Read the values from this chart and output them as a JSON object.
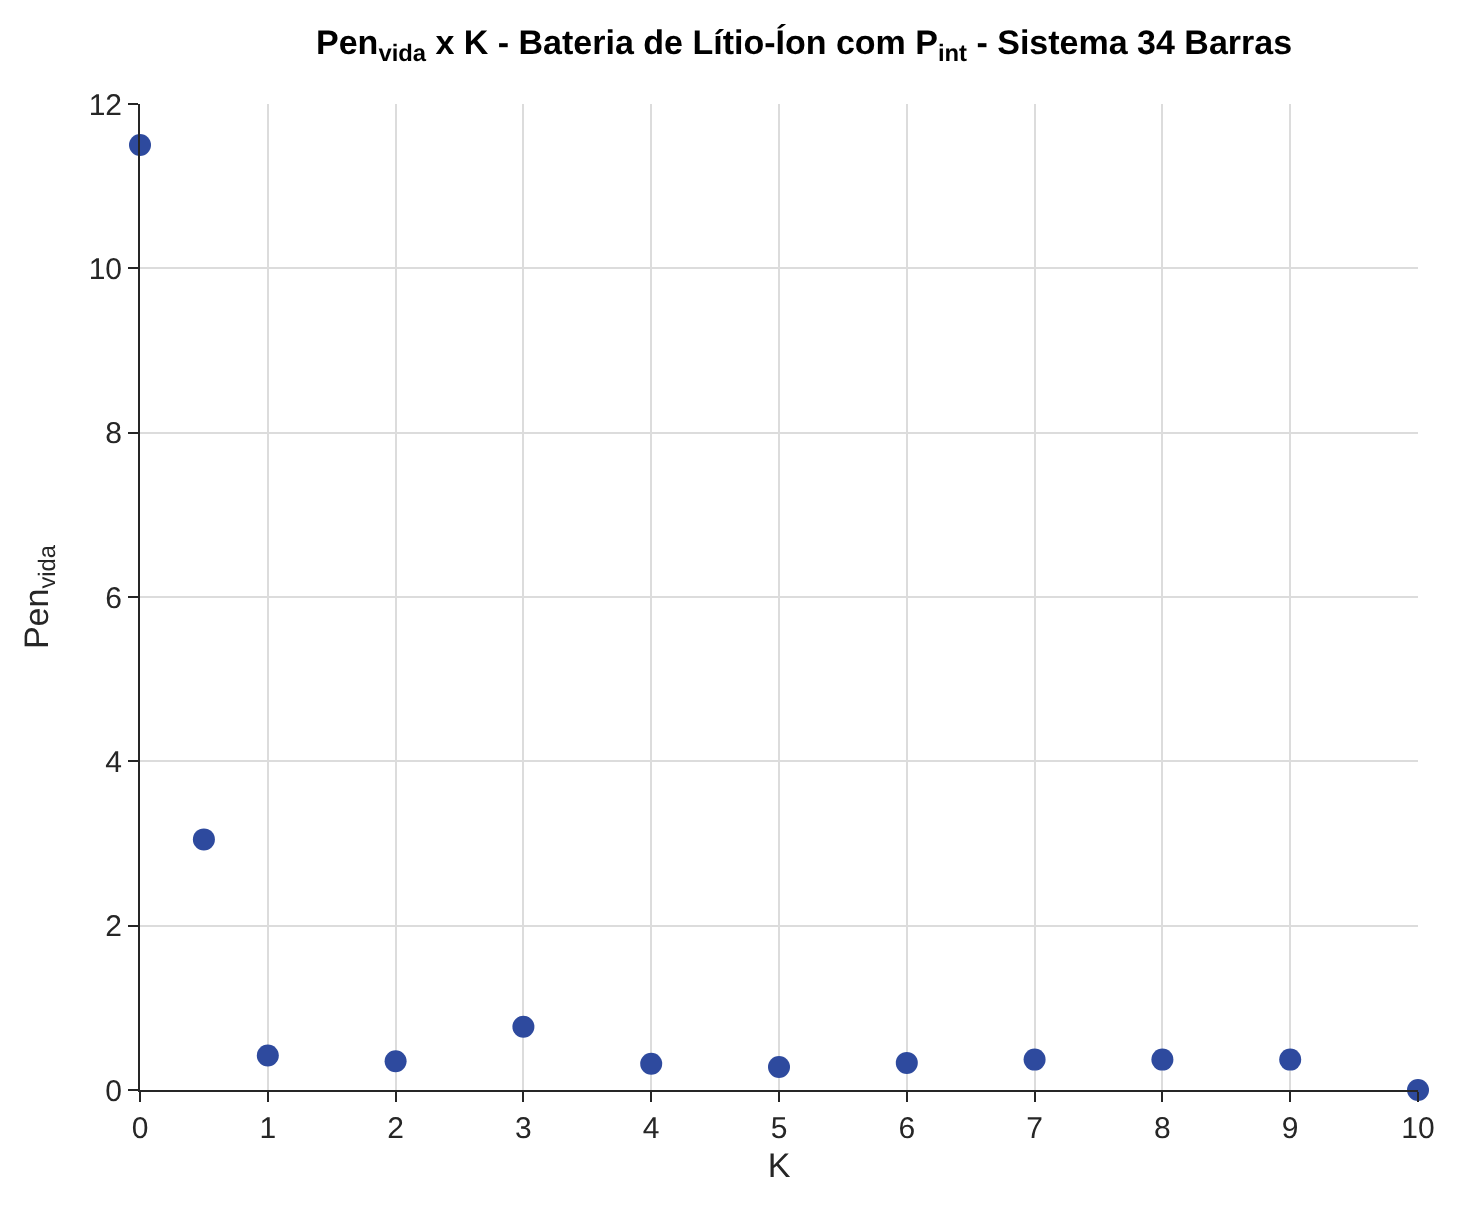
{
  "chart_data": {
    "type": "scatter",
    "title": "Pen$_{vida}$ x K - Bateria de Lítio-Íon com P$_{int}$ - Sistema 34 Barras",
    "xlabel": "K",
    "ylabel": "Pen$_{vida}$",
    "x": [
      0,
      0.5,
      1,
      2,
      3,
      4,
      5,
      6,
      7,
      8,
      9,
      10
    ],
    "series": [
      {
        "color": "#2e4a9e",
        "values": [
          11.5,
          3.05,
          0.42,
          0.35,
          0.77,
          0.32,
          0.28,
          0.33,
          0.37,
          0.37,
          0.37,
          0
        ]
      }
    ],
    "xlim": [
      0,
      10
    ],
    "xticks": [
      0,
      1,
      2,
      3,
      4,
      5,
      6,
      7,
      8,
      9,
      10
    ],
    "ylim": [
      0,
      12
    ],
    "yticks": [
      0,
      2,
      4,
      6,
      8,
      10,
      12
    ],
    "grid": true,
    "marker": "circle",
    "legend": false
  }
}
